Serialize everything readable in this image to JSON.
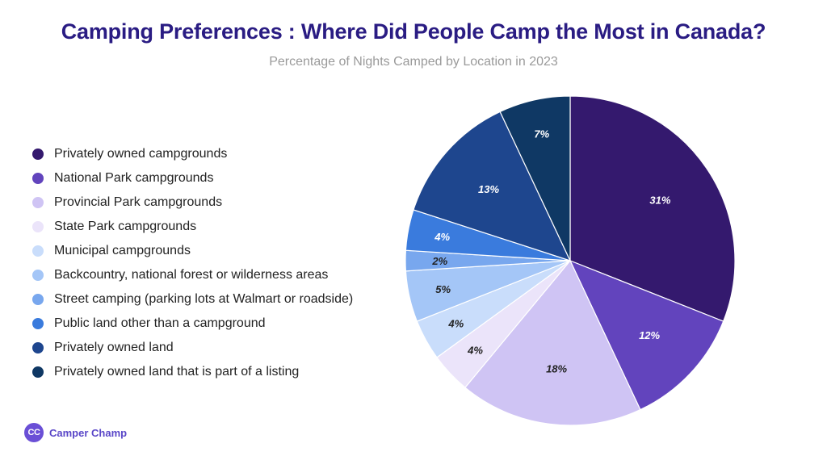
{
  "chart_data": {
    "type": "pie",
    "title": "Camping Preferences : Where Did People Camp the Most in Canada?",
    "subtitle": "Percentage of Nights Camped by Location in 2023",
    "categories": [
      "Privately owned campgrounds",
      "National Park campgrounds",
      "Provincial Park campgrounds",
      "State Park campgrounds",
      "Municipal campgrounds",
      "Backcountry, national forest or wilderness areas",
      "Street camping (parking lots at Walmart or roadside)",
      "Public land other than a campground",
      "Privately owned land",
      "Privately owned land that is part of a listing"
    ],
    "values": [
      31,
      12,
      18,
      4,
      4,
      5,
      2,
      4,
      13,
      7
    ],
    "value_labels": [
      "31%",
      "12%",
      "18%",
      "4%",
      "4%",
      "5%",
      "2%",
      "4%",
      "13%",
      "7%"
    ],
    "colors": [
      "#34196e",
      "#6244bd",
      "#cfc4f4",
      "#ebe4fa",
      "#c9ddfb",
      "#a4c6f7",
      "#78a7ee",
      "#3a7bdd",
      "#1e468e",
      "#0f3864"
    ],
    "label_colors": [
      "#ffffff",
      "#ffffff",
      "#222222",
      "#222222",
      "#222222",
      "#222222",
      "#222222",
      "#ffffff",
      "#ffffff",
      "#ffffff"
    ],
    "legend_position": "left",
    "start_angle_deg": 0,
    "direction": "clockwise"
  },
  "brand": {
    "logo_text": "CC",
    "name": "Camper Champ"
  }
}
